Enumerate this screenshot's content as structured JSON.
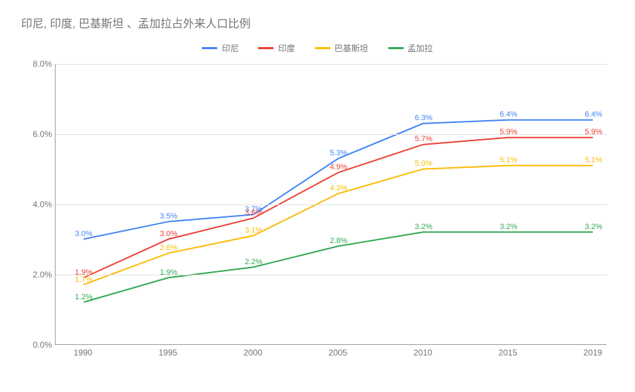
{
  "chart": {
    "type": "line",
    "title": "印尼, 印度, 巴基斯坦 、孟加拉占外来人口比例",
    "title_color": "#757575",
    "title_fontsize": 16,
    "background_color": "#ffffff",
    "grid_color": "#e0e0e0",
    "axis_color": "#9e9e9e",
    "label_color": "#757575",
    "label_fontsize": 12,
    "data_label_fontsize": 11,
    "categories": [
      "1990",
      "1995",
      "2000",
      "2005",
      "2010",
      "2015",
      "2019"
    ],
    "ylim": [
      0,
      8
    ],
    "ytick_step": 2,
    "y_format": "percent",
    "y_decimals": 1,
    "line_width": 2,
    "series": [
      {
        "name": "印尼",
        "color": "#4285f4",
        "values": [
          3.0,
          3.5,
          3.7,
          5.3,
          6.3,
          6.4,
          6.4
        ],
        "labels": [
          "3.0%",
          "3.5%",
          "3.7%",
          "5.3%",
          "6.3%",
          "6.4%",
          "6.4%"
        ]
      },
      {
        "name": "印度",
        "color": "#ea4335",
        "values": [
          1.9,
          3.0,
          3.6,
          4.9,
          5.7,
          5.9,
          5.9
        ],
        "labels": [
          "1.9%",
          "3.0%",
          "3.6%",
          "4.9%",
          "5.7%",
          "5.9%",
          "5.9%"
        ]
      },
      {
        "name": "巴基斯坦",
        "color": "#fbbc04",
        "values": [
          1.7,
          2.6,
          3.1,
          4.3,
          5.0,
          5.1,
          5.1
        ],
        "labels": [
          "1.7%",
          "2.6%",
          "3.1%",
          "4.3%",
          "5.0%",
          "5.1%",
          "5.1%"
        ]
      },
      {
        "name": "孟加拉",
        "color": "#34a853",
        "values": [
          1.2,
          1.9,
          2.2,
          2.8,
          3.2,
          3.2,
          3.2
        ],
        "labels": [
          "1.2%",
          "1.9%",
          "2.2%",
          "2.8%",
          "3.2%",
          "3.2%",
          "3.2%"
        ]
      }
    ]
  }
}
